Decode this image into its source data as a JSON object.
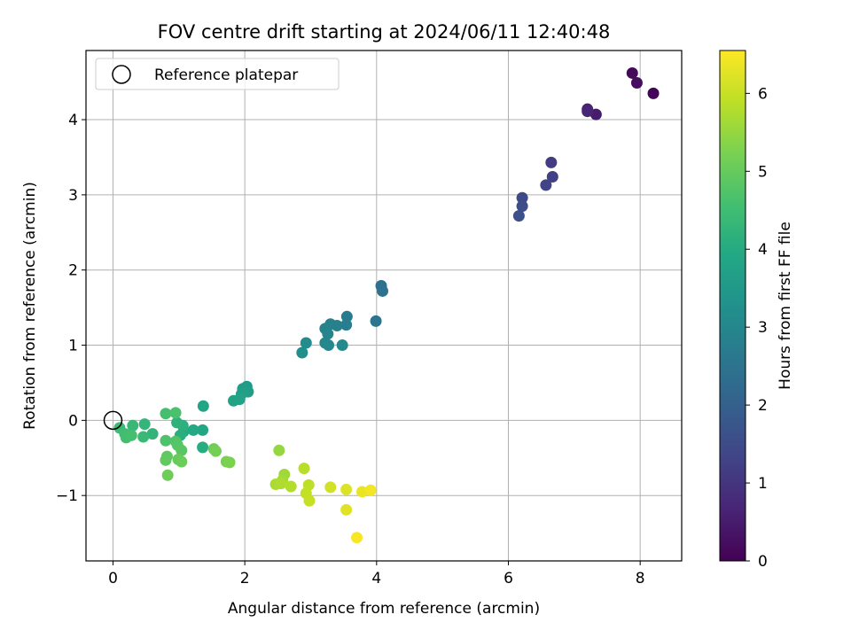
{
  "chart_data": {
    "type": "scatter",
    "title": "FOV centre drift starting at 2024/06/11 12:40:48",
    "xlabel": "Angular distance from reference (arcmin)",
    "ylabel": "Rotation from reference (arcmin)",
    "xlim": [
      -0.41,
      8.63
    ],
    "ylim": [
      -1.87,
      4.92
    ],
    "xticks": [
      0,
      2,
      4,
      6,
      8
    ],
    "xtick_labels": [
      "0",
      "2",
      "4",
      "6",
      "8"
    ],
    "yticks": [
      -1,
      0,
      1,
      2,
      3,
      4
    ],
    "ytick_labels": [
      "−1",
      "0",
      "1",
      "2",
      "3",
      "4"
    ],
    "grid": true,
    "legend": {
      "placement": "top-left",
      "entries": [
        {
          "label": "Reference platepar",
          "marker": "open-circle",
          "x": 0,
          "y": 0
        }
      ]
    },
    "colorbar": {
      "label": "Hours from first FF file",
      "colormap": "viridis",
      "range": [
        0,
        6.55
      ],
      "ticks": [
        0,
        1,
        2,
        3,
        4,
        5,
        6
      ],
      "tick_labels": [
        "0",
        "1",
        "2",
        "3",
        "4",
        "5",
        "6"
      ]
    },
    "points": [
      {
        "x": 8.2,
        "y": 4.35,
        "c": 0.05
      },
      {
        "x": 7.88,
        "y": 4.62,
        "c": 0.15
      },
      {
        "x": 7.95,
        "y": 4.49,
        "c": 0.25
      },
      {
        "x": 7.33,
        "y": 4.07,
        "c": 0.5
      },
      {
        "x": 7.2,
        "y": 4.14,
        "c": 0.6
      },
      {
        "x": 7.2,
        "y": 4.11,
        "c": 0.7
      },
      {
        "x": 6.65,
        "y": 3.43,
        "c": 1.15
      },
      {
        "x": 6.67,
        "y": 3.24,
        "c": 1.2
      },
      {
        "x": 6.57,
        "y": 3.13,
        "c": 1.3
      },
      {
        "x": 6.21,
        "y": 2.96,
        "c": 1.45
      },
      {
        "x": 6.21,
        "y": 2.85,
        "c": 1.5
      },
      {
        "x": 6.16,
        "y": 2.72,
        "c": 1.6
      },
      {
        "x": 4.07,
        "y": 1.79,
        "c": 2.4
      },
      {
        "x": 4.09,
        "y": 1.72,
        "c": 2.45
      },
      {
        "x": 3.99,
        "y": 1.32,
        "c": 2.55
      },
      {
        "x": 3.55,
        "y": 1.38,
        "c": 2.7
      },
      {
        "x": 3.54,
        "y": 1.27,
        "c": 2.75
      },
      {
        "x": 3.4,
        "y": 1.26,
        "c": 2.8
      },
      {
        "x": 3.3,
        "y": 1.28,
        "c": 2.85
      },
      {
        "x": 3.22,
        "y": 1.22,
        "c": 2.9
      },
      {
        "x": 3.26,
        "y": 1.15,
        "c": 2.95
      },
      {
        "x": 3.22,
        "y": 1.03,
        "c": 3.0
      },
      {
        "x": 3.27,
        "y": 1.0,
        "c": 3.05
      },
      {
        "x": 3.48,
        "y": 1.0,
        "c": 3.1
      },
      {
        "x": 2.93,
        "y": 1.03,
        "c": 3.15
      },
      {
        "x": 2.87,
        "y": 0.9,
        "c": 3.2
      },
      {
        "x": 2.03,
        "y": 0.45,
        "c": 3.55
      },
      {
        "x": 1.97,
        "y": 0.42,
        "c": 3.6
      },
      {
        "x": 2.05,
        "y": 0.38,
        "c": 3.65
      },
      {
        "x": 1.95,
        "y": 0.35,
        "c": 3.7
      },
      {
        "x": 1.92,
        "y": 0.28,
        "c": 3.75
      },
      {
        "x": 1.83,
        "y": 0.26,
        "c": 3.8
      },
      {
        "x": 1.37,
        "y": 0.19,
        "c": 3.85
      },
      {
        "x": 1.36,
        "y": -0.13,
        "c": 3.9
      },
      {
        "x": 1.22,
        "y": -0.13,
        "c": 3.95
      },
      {
        "x": 1.07,
        "y": -0.15,
        "c": 4.0
      },
      {
        "x": 1.36,
        "y": -0.36,
        "c": 4.05
      },
      {
        "x": 1.02,
        "y": -0.2,
        "c": 4.1
      },
      {
        "x": 1.06,
        "y": -0.07,
        "c": 4.15
      },
      {
        "x": 0.97,
        "y": -0.03,
        "c": 4.2
      },
      {
        "x": 0.6,
        "y": -0.18,
        "c": 4.25
      },
      {
        "x": 0.48,
        "y": -0.05,
        "c": 4.3
      },
      {
        "x": 0.3,
        "y": -0.07,
        "c": 4.35
      },
      {
        "x": 0.46,
        "y": -0.22,
        "c": 4.4
      },
      {
        "x": 0.1,
        "y": -0.1,
        "c": 4.45
      },
      {
        "x": 0.18,
        "y": -0.18,
        "c": 4.5
      },
      {
        "x": 0.2,
        "y": -0.23,
        "c": 4.55
      },
      {
        "x": 0.28,
        "y": -0.2,
        "c": 4.6
      },
      {
        "x": 0.8,
        "y": 0.09,
        "c": 4.6
      },
      {
        "x": 0.95,
        "y": 0.1,
        "c": 4.65
      },
      {
        "x": 0.8,
        "y": -0.27,
        "c": 4.7
      },
      {
        "x": 0.95,
        "y": -0.28,
        "c": 4.75
      },
      {
        "x": 0.98,
        "y": -0.33,
        "c": 4.8
      },
      {
        "x": 1.04,
        "y": -0.4,
        "c": 4.85
      },
      {
        "x": 0.82,
        "y": -0.48,
        "c": 4.9
      },
      {
        "x": 0.8,
        "y": -0.53,
        "c": 4.95
      },
      {
        "x": 0.99,
        "y": -0.52,
        "c": 5.0
      },
      {
        "x": 1.04,
        "y": -0.55,
        "c": 5.05
      },
      {
        "x": 0.83,
        "y": -0.73,
        "c": 5.1
      },
      {
        "x": 1.53,
        "y": -0.38,
        "c": 5.1
      },
      {
        "x": 1.56,
        "y": -0.41,
        "c": 5.15
      },
      {
        "x": 1.72,
        "y": -0.55,
        "c": 5.2
      },
      {
        "x": 1.77,
        "y": -0.56,
        "c": 5.25
      },
      {
        "x": 2.52,
        "y": -0.4,
        "c": 5.5
      },
      {
        "x": 2.6,
        "y": -0.72,
        "c": 5.6
      },
      {
        "x": 2.57,
        "y": -0.8,
        "c": 5.65
      },
      {
        "x": 2.47,
        "y": -0.85,
        "c": 5.7
      },
      {
        "x": 2.55,
        "y": -0.84,
        "c": 5.75
      },
      {
        "x": 2.7,
        "y": -0.88,
        "c": 5.8
      },
      {
        "x": 2.9,
        "y": -0.64,
        "c": 5.85
      },
      {
        "x": 2.97,
        "y": -0.86,
        "c": 5.9
      },
      {
        "x": 2.93,
        "y": -0.97,
        "c": 5.95
      },
      {
        "x": 2.98,
        "y": -1.07,
        "c": 6.0
      },
      {
        "x": 3.3,
        "y": -0.89,
        "c": 6.1
      },
      {
        "x": 3.54,
        "y": -0.92,
        "c": 6.2
      },
      {
        "x": 3.54,
        "y": -1.19,
        "c": 6.25
      },
      {
        "x": 3.78,
        "y": -0.95,
        "c": 6.35
      },
      {
        "x": 3.91,
        "y": -0.93,
        "c": 6.45
      },
      {
        "x": 3.7,
        "y": -1.56,
        "c": 6.5
      }
    ]
  }
}
